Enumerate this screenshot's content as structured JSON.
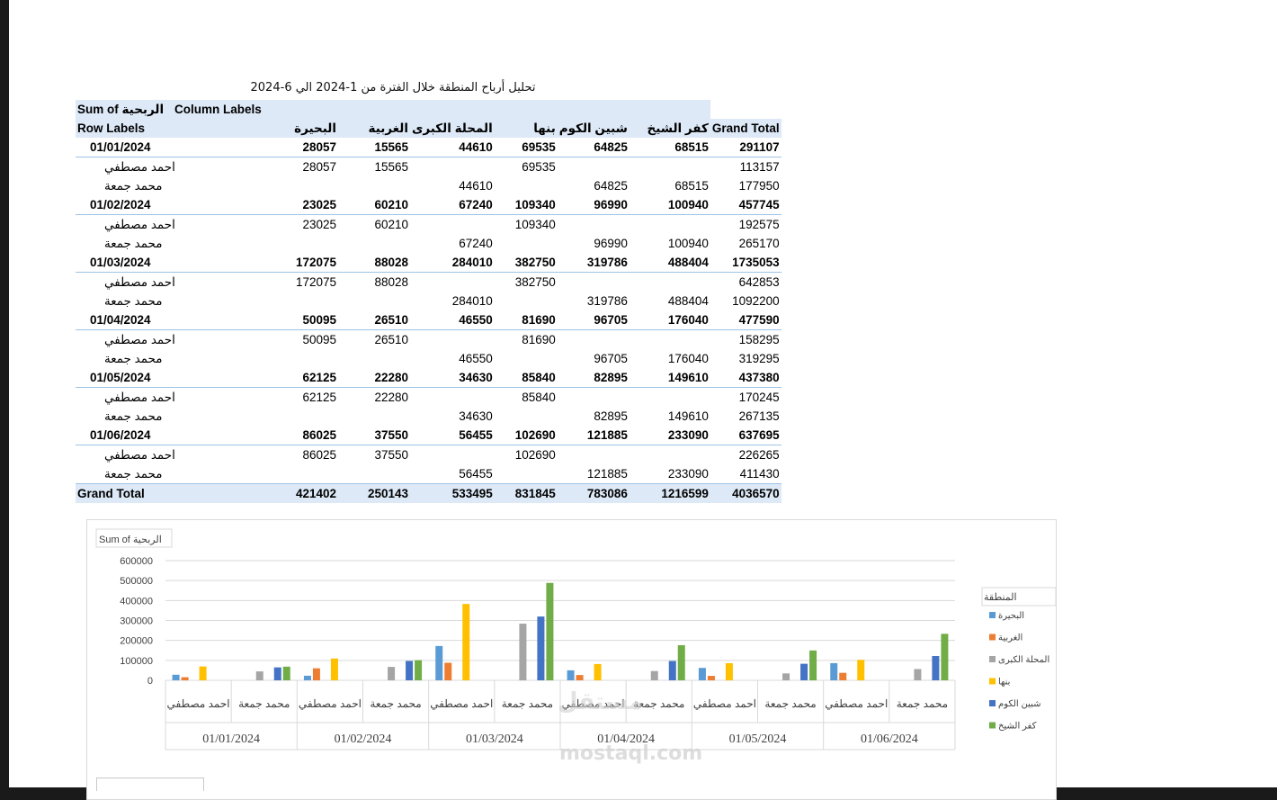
{
  "title": "تحليل أرباح المنطقة خلال الفترة من 1-2024 الي 6-2024",
  "pivot": {
    "header1": {
      "sum_label": "Sum of الربحية",
      "col_labels": "Column Labels"
    },
    "header2": {
      "row_labels": "Row Labels",
      "columns": [
        "البحيرة",
        "الغربية",
        "المحلة الكبرى",
        "بنها",
        "شبين الكوم",
        "كفر الشيخ"
      ],
      "grand_total": "Grand Total"
    },
    "rows": [
      {
        "type": "date",
        "label": "01/01/2024",
        "values": [
          "28057",
          "15565",
          "44610",
          "69535",
          "64825",
          "68515"
        ],
        "total": "291107"
      },
      {
        "type": "person",
        "label": "احمد مصطفي",
        "values": [
          "28057",
          "15565",
          "",
          "69535",
          "",
          ""
        ],
        "total": "113157"
      },
      {
        "type": "person",
        "label": "محمد جمعة",
        "values": [
          "",
          "",
          "44610",
          "",
          "64825",
          "68515"
        ],
        "total": "177950"
      },
      {
        "type": "date",
        "label": "01/02/2024",
        "values": [
          "23025",
          "60210",
          "67240",
          "109340",
          "96990",
          "100940"
        ],
        "total": "457745"
      },
      {
        "type": "person",
        "label": "احمد مصطفي",
        "values": [
          "23025",
          "60210",
          "",
          "109340",
          "",
          ""
        ],
        "total": "192575"
      },
      {
        "type": "person",
        "label": "محمد جمعة",
        "values": [
          "",
          "",
          "67240",
          "",
          "96990",
          "100940"
        ],
        "total": "265170"
      },
      {
        "type": "date",
        "label": "01/03/2024",
        "values": [
          "172075",
          "88028",
          "284010",
          "382750",
          "319786",
          "488404"
        ],
        "total": "1735053"
      },
      {
        "type": "person",
        "label": "احمد مصطفي",
        "values": [
          "172075",
          "88028",
          "",
          "382750",
          "",
          ""
        ],
        "total": "642853"
      },
      {
        "type": "person",
        "label": "محمد جمعة",
        "values": [
          "",
          "",
          "284010",
          "",
          "319786",
          "488404"
        ],
        "total": "1092200"
      },
      {
        "type": "date",
        "label": "01/04/2024",
        "values": [
          "50095",
          "26510",
          "46550",
          "81690",
          "96705",
          "176040"
        ],
        "total": "477590"
      },
      {
        "type": "person",
        "label": "احمد مصطفي",
        "values": [
          "50095",
          "26510",
          "",
          "81690",
          "",
          ""
        ],
        "total": "158295"
      },
      {
        "type": "person",
        "label": "محمد جمعة",
        "values": [
          "",
          "",
          "46550",
          "",
          "96705",
          "176040"
        ],
        "total": "319295"
      },
      {
        "type": "date",
        "label": "01/05/2024",
        "values": [
          "62125",
          "22280",
          "34630",
          "85840",
          "82895",
          "149610"
        ],
        "total": "437380"
      },
      {
        "type": "person",
        "label": "احمد مصطفي",
        "values": [
          "62125",
          "22280",
          "",
          "85840",
          "",
          ""
        ],
        "total": "170245"
      },
      {
        "type": "person",
        "label": "محمد جمعة",
        "values": [
          "",
          "",
          "34630",
          "",
          "82895",
          "149610"
        ],
        "total": "267135"
      },
      {
        "type": "date",
        "label": "01/06/2024",
        "values": [
          "86025",
          "37550",
          "56455",
          "102690",
          "121885",
          "233090"
        ],
        "total": "637695"
      },
      {
        "type": "person",
        "label": "احمد مصطفي",
        "values": [
          "86025",
          "37550",
          "",
          "102690",
          "",
          ""
        ],
        "total": "226265"
      },
      {
        "type": "person",
        "label": "محمد جمعة",
        "values": [
          "",
          "",
          "56455",
          "",
          "121885",
          "233090"
        ],
        "total": "411430"
      }
    ],
    "grand_row": {
      "label": "Grand Total",
      "values": [
        "421402",
        "250143",
        "533495",
        "831845",
        "783086",
        "1216599"
      ],
      "total": "4036570"
    }
  },
  "chart_data": {
    "type": "bar",
    "title": "Sum of الربحية",
    "legend_title": "المنطقة",
    "legend_position": "right",
    "ylim": [
      0,
      600000
    ],
    "yticks": [
      0,
      100000,
      200000,
      300000,
      400000,
      500000,
      600000
    ],
    "grid": true,
    "groups": [
      "01/01/2024",
      "01/02/2024",
      "01/03/2024",
      "01/04/2024",
      "01/05/2024",
      "01/06/2024"
    ],
    "categories": [
      "احمد مصطفي",
      "محمد جمعة"
    ],
    "series": [
      {
        "name": "البحيرة",
        "color": "#5b9bd5",
        "values": [
          [
            28057,
            0
          ],
          [
            23025,
            0
          ],
          [
            172075,
            0
          ],
          [
            50095,
            0
          ],
          [
            62125,
            0
          ],
          [
            86025,
            0
          ]
        ]
      },
      {
        "name": "الغربية",
        "color": "#ed7d31",
        "values": [
          [
            15565,
            0
          ],
          [
            60210,
            0
          ],
          [
            88028,
            0
          ],
          [
            26510,
            0
          ],
          [
            22280,
            0
          ],
          [
            37550,
            0
          ]
        ]
      },
      {
        "name": "المحلة الكبرى",
        "color": "#a5a5a5",
        "values": [
          [
            0,
            44610
          ],
          [
            0,
            67240
          ],
          [
            0,
            284010
          ],
          [
            0,
            46550
          ],
          [
            0,
            34630
          ],
          [
            0,
            56455
          ]
        ]
      },
      {
        "name": "بنها",
        "color": "#ffc000",
        "values": [
          [
            69535,
            0
          ],
          [
            109340,
            0
          ],
          [
            382750,
            0
          ],
          [
            81690,
            0
          ],
          [
            85840,
            0
          ],
          [
            102690,
            0
          ]
        ]
      },
      {
        "name": "شبين الكوم",
        "color": "#4472c4",
        "values": [
          [
            0,
            64825
          ],
          [
            0,
            96990
          ],
          [
            0,
            319786
          ],
          [
            0,
            96705
          ],
          [
            0,
            82895
          ],
          [
            0,
            121885
          ]
        ]
      },
      {
        "name": "كفر الشيخ",
        "color": "#70ad47",
        "values": [
          [
            0,
            68515
          ],
          [
            0,
            100940
          ],
          [
            0,
            488404
          ],
          [
            0,
            176040
          ],
          [
            0,
            149610
          ],
          [
            0,
            233090
          ]
        ]
      }
    ]
  },
  "watermark": {
    "text": "مستقل",
    "sub": "mostaql.com"
  }
}
